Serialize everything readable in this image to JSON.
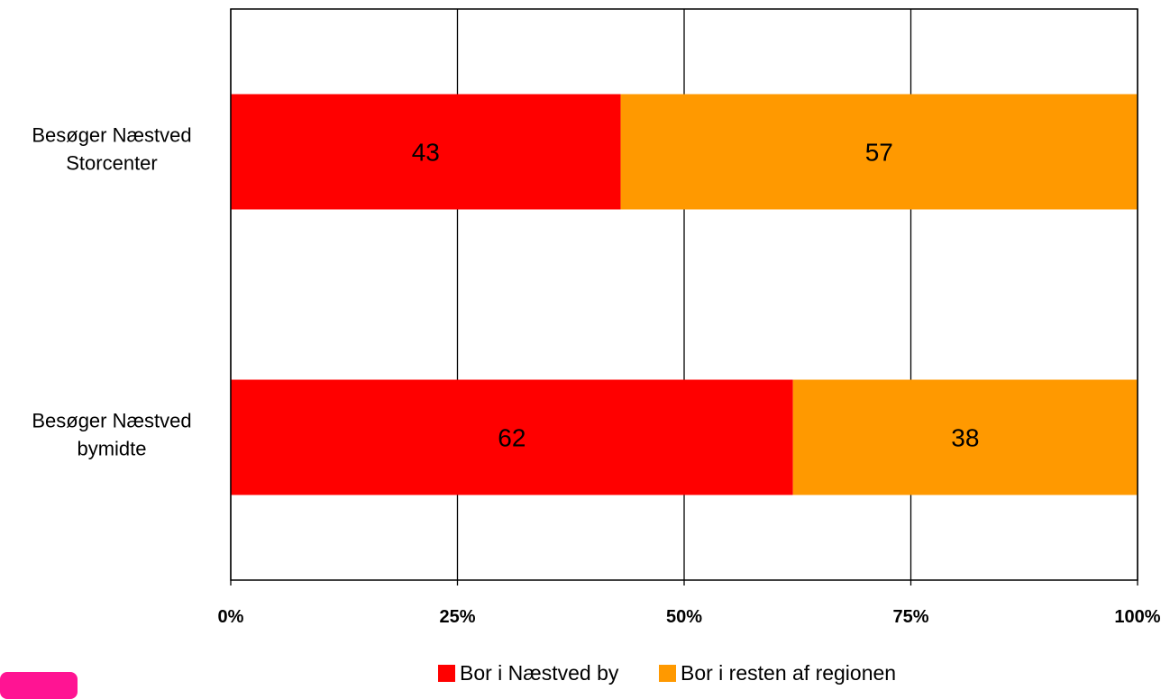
{
  "chart_data": {
    "type": "bar",
    "orientation": "horizontal",
    "stacked": true,
    "categories": [
      "Besøger Næstved Storcenter",
      "Besøger Næstved bymidte"
    ],
    "category_lines": [
      [
        "Besøger Næstved",
        "Storcenter"
      ],
      [
        "Besøger Næstved",
        "bymidte"
      ]
    ],
    "series": [
      {
        "name": "Bor i Næstved by",
        "values": [
          43,
          62
        ],
        "color": "#ff0000"
      },
      {
        "name": "Bor i resten af regionen",
        "values": [
          57,
          38
        ],
        "color": "#ff9900"
      }
    ],
    "xticks": [
      "0%",
      "25%",
      "50%",
      "75%",
      "100%"
    ],
    "xtick_values": [
      0,
      25,
      50,
      75,
      100
    ],
    "xlim": [
      0,
      100
    ],
    "grid": true,
    "legend_position": "bottom",
    "show_data_labels": true
  },
  "decoration": {
    "corner_mark_color": "#ff1493"
  }
}
